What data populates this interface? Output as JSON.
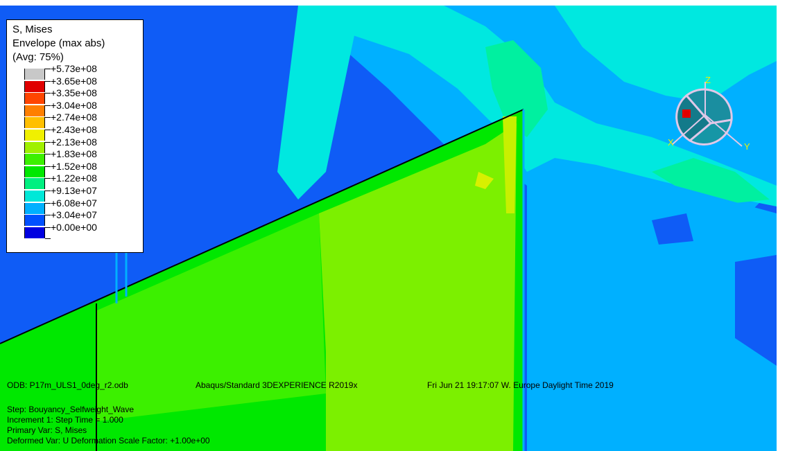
{
  "legend": {
    "title_line1": "S, Mises",
    "title_line2": "Envelope (max abs)",
    "title_line3": "(Avg: 75%)",
    "entries": [
      {
        "label": "+5.73e+08",
        "color": "#c8c8c8"
      },
      {
        "label": "+3.65e+08",
        "color": "#e00000"
      },
      {
        "label": "+3.35e+08",
        "color": "#ff4500"
      },
      {
        "label": "+3.04e+08",
        "color": "#ff7f00"
      },
      {
        "label": "+2.74e+08",
        "color": "#ffbf00"
      },
      {
        "label": "+2.43e+08",
        "color": "#f0f000"
      },
      {
        "label": "+2.13e+08",
        "color": "#a0f000"
      },
      {
        "label": "+1.83e+08",
        "color": "#3cf000"
      },
      {
        "label": "+1.52e+08",
        "color": "#00e800"
      },
      {
        "label": "+1.22e+08",
        "color": "#00f080"
      },
      {
        "label": "+9.13e+07",
        "color": "#00e8d8"
      },
      {
        "label": "+6.08e+07",
        "color": "#00b0ff"
      },
      {
        "label": "+3.04e+07",
        "color": "#0050ff"
      },
      {
        "label": "+0.00e+00",
        "color": "#0000e0"
      }
    ]
  },
  "triad": {
    "axis_z": "Z",
    "axis_x": "X",
    "axis_y": "Y"
  },
  "info": {
    "odb_file": "ODB: P17m_ULS1_0deg_r2.odb",
    "software": "Abaqus/Standard 3DEXPERIENCE R2019x",
    "timestamp": "Fri Jun 21 19:17:07 W. Europe Daylight Time 2019",
    "step": "Step: Bouyancy_Selfweight_Wave",
    "increment": "Increment     1: Step Time =    1.000",
    "primary_var": "Primary Var: S, Mises",
    "deformed_var": "Deformed Var: U   Deformation Scale Factor: +1.00e+00"
  },
  "colors": {
    "background_blue": "#0f5cf6",
    "light_blue": "#00b0ff",
    "cyan": "#00e8e0",
    "aqua_green": "#00f0a0",
    "green": "#00e800",
    "yellow_green": "#7cf000"
  }
}
